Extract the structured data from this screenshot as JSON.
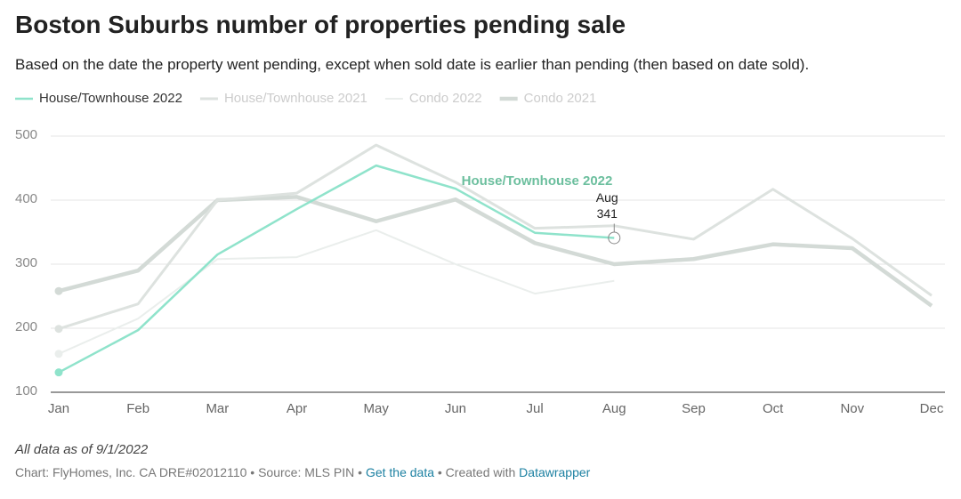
{
  "chart_data": {
    "type": "line",
    "title": "Boston Suburbs number of properties pending sale",
    "subtitle": "Based on the date the property went pending, except when sold date is earlier than pending (then based on date sold).",
    "categories": [
      "Jan",
      "Feb",
      "Mar",
      "Apr",
      "May",
      "Jun",
      "Jul",
      "Aug",
      "Sep",
      "Oct",
      "Nov",
      "Dec"
    ],
    "series": [
      {
        "name": "House/Townhouse 2022",
        "color": "#8fe3cb",
        "values": [
          131,
          197,
          315,
          386,
          454,
          418,
          349,
          341,
          null,
          null,
          null,
          null
        ]
      },
      {
        "name": "House/Townhouse 2021",
        "color": "#dde2df",
        "values": [
          199,
          238,
          400,
          411,
          486,
          428,
          356,
          360,
          339,
          417,
          340,
          251
        ]
      },
      {
        "name": "Condo 2022",
        "color": "#eaeeec",
        "values": [
          160,
          215,
          308,
          311,
          353,
          300,
          254,
          274,
          null,
          null,
          null,
          null
        ]
      },
      {
        "name": "Condo 2021",
        "color": "#d3dad6",
        "values": [
          258,
          290,
          400,
          405,
          367,
          401,
          333,
          300,
          308,
          331,
          325,
          235
        ]
      }
    ],
    "ylim": [
      100,
      500
    ],
    "yticks": [
      100,
      200,
      300,
      400,
      500
    ],
    "grid": true,
    "footer": {
      "note": "All data as of 9/1/2022",
      "source": "Chart: FlyHomes, Inc. CA DRE#02012110 • Source: MLS PIN • ",
      "link1": "Get the data",
      "sep": " • Created with ",
      "link2": "Datawrapper"
    }
  }
}
